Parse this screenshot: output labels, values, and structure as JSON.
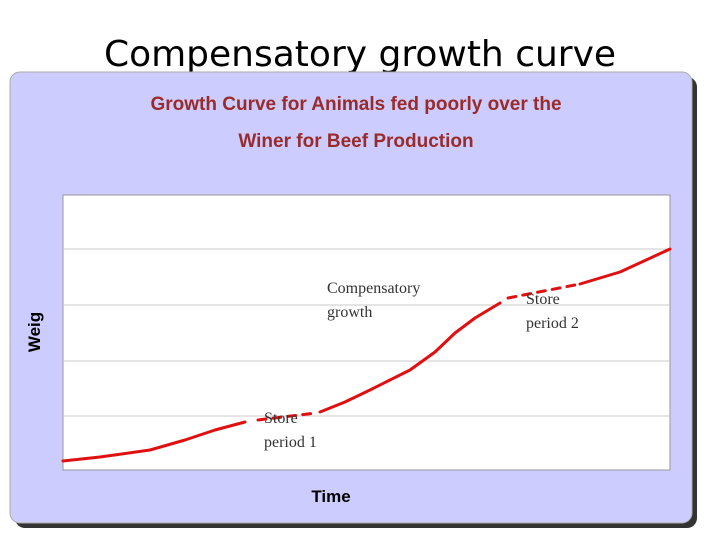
{
  "slide": {
    "title": "Compensatory growth curve"
  },
  "chart": {
    "title_lines": [
      "Growth Curve for Animals fed poorly over the",
      "Winer for Beef Production"
    ],
    "y_label": "Weig",
    "x_label": "Time",
    "annotations": [
      {
        "lines": [
          "Compensatory",
          "growth"
        ]
      },
      {
        "lines": [
          "Store",
          "period 1"
        ]
      },
      {
        "lines": [
          "Store",
          "period 2"
        ]
      }
    ]
  }
}
